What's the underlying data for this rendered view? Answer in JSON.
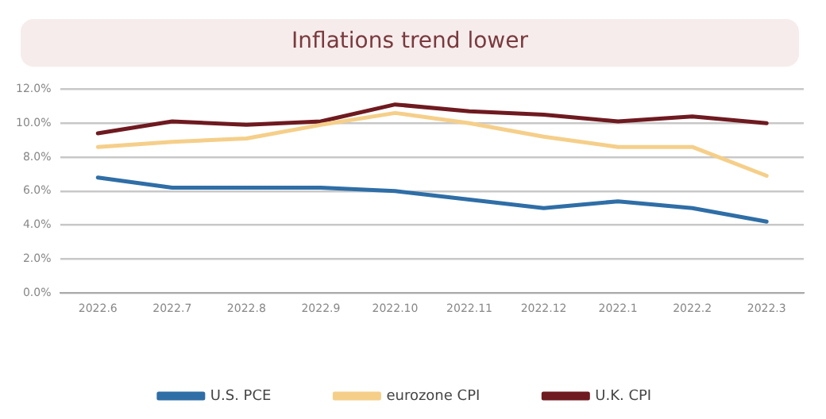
{
  "chart_data": {
    "type": "line",
    "title": "Inflations trend lower",
    "categories": [
      "2022.6",
      "2022.7",
      "2022.8",
      "2022.9",
      "2022.10",
      "2022.11",
      "2022.12",
      "2022.1",
      "2022.2",
      "2022.3"
    ],
    "series": [
      {
        "name": "U.S. PCE",
        "color": "#2f6ea6",
        "values": [
          6.8,
          6.2,
          6.2,
          6.2,
          6.0,
          5.5,
          5.0,
          5.4,
          5.0,
          4.2
        ]
      },
      {
        "name": "eurozone CPI",
        "color": "#f5cf8a",
        "values": [
          8.6,
          8.9,
          9.1,
          9.9,
          10.6,
          10.0,
          9.2,
          8.6,
          8.6,
          6.9
        ]
      },
      {
        "name": "U.K. CPI",
        "color": "#6e1a20",
        "values": [
          9.4,
          10.1,
          9.9,
          10.1,
          11.1,
          10.7,
          10.5,
          10.1,
          10.4,
          10.0
        ]
      }
    ],
    "ylim": [
      0,
      12
    ],
    "yticks": [
      {
        "value": 0,
        "label": "0.0%"
      },
      {
        "value": 2,
        "label": "2.0%"
      },
      {
        "value": 4,
        "label": "4.0%"
      },
      {
        "value": 6,
        "label": "6.0%"
      },
      {
        "value": 8,
        "label": "8.0%"
      },
      {
        "value": 10,
        "label": "10.0%"
      },
      {
        "value": 12,
        "label": "12.0%"
      }
    ],
    "grid": "y",
    "legend": "bottom",
    "marker": "none",
    "line_style": "solid"
  }
}
